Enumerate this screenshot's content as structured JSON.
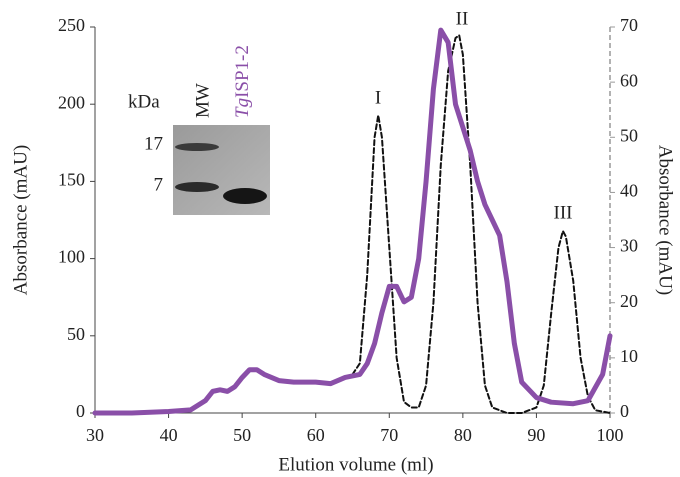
{
  "chart_data": {
    "type": "line",
    "x_label": "Elution volume (ml)",
    "y_label": "Absorbance (mAU)",
    "y2_label": "Absorbance (mAU)",
    "xlim": [
      30,
      100
    ],
    "xticks": [
      30,
      40,
      50,
      60,
      70,
      80,
      90,
      100
    ],
    "ylim": [
      0,
      250
    ],
    "yticks": [
      0,
      50,
      100,
      150,
      200,
      250
    ],
    "y2lim": [
      0,
      70
    ],
    "y2ticks": [
      0,
      10,
      20,
      30,
      40,
      50,
      60,
      70
    ],
    "annotations": [
      "I",
      "II",
      "III"
    ],
    "series": [
      {
        "color": "#8a4fa8",
        "axis": "y",
        "dashed": false,
        "x": [
          30,
          35,
          40,
          43,
          45,
          46,
          47,
          48,
          49,
          50,
          51,
          52,
          53,
          55,
          57,
          60,
          62,
          64,
          66,
          67,
          68,
          69,
          70,
          71,
          72,
          73,
          74,
          75,
          76,
          77,
          78,
          79,
          80,
          81,
          82,
          83,
          84,
          85,
          86,
          87,
          88,
          90,
          92,
          95,
          97,
          99,
          100
        ],
        "values": [
          0,
          0,
          1,
          2,
          8,
          14,
          15,
          14,
          17,
          23,
          28,
          28,
          25,
          21,
          20,
          20,
          19,
          23,
          25,
          32,
          45,
          65,
          82,
          82,
          72,
          75,
          100,
          150,
          210,
          248,
          240,
          200,
          185,
          170,
          150,
          135,
          125,
          115,
          85,
          45,
          20,
          10,
          7,
          6,
          8,
          25,
          50
        ]
      },
      {
        "color": "#111111",
        "axis": "y2",
        "dashed": true,
        "x": [
          65,
          66,
          67,
          68,
          68.5,
          69,
          70,
          71,
          72,
          73,
          74,
          75,
          76,
          77,
          78,
          79,
          79.5,
          80,
          81,
          82,
          83,
          84,
          86,
          88,
          90,
          91,
          92,
          93,
          93.6,
          94,
          95,
          96,
          97,
          98,
          100
        ],
        "values": [
          7,
          9,
          25,
          50,
          54,
          50,
          30,
          10,
          2,
          1,
          1,
          5,
          20,
          45,
          62,
          68,
          68.5,
          65,
          45,
          20,
          5,
          1,
          0,
          0,
          1,
          5,
          18,
          30,
          33,
          32,
          24,
          10,
          3,
          0.5,
          0
        ]
      }
    ]
  },
  "inset": {
    "unit": "kDa",
    "markers": [
      17,
      7
    ],
    "lane_1": "MW",
    "lane_2_italic": "Tg",
    "lane_2_rest": "ISP1-2"
  }
}
